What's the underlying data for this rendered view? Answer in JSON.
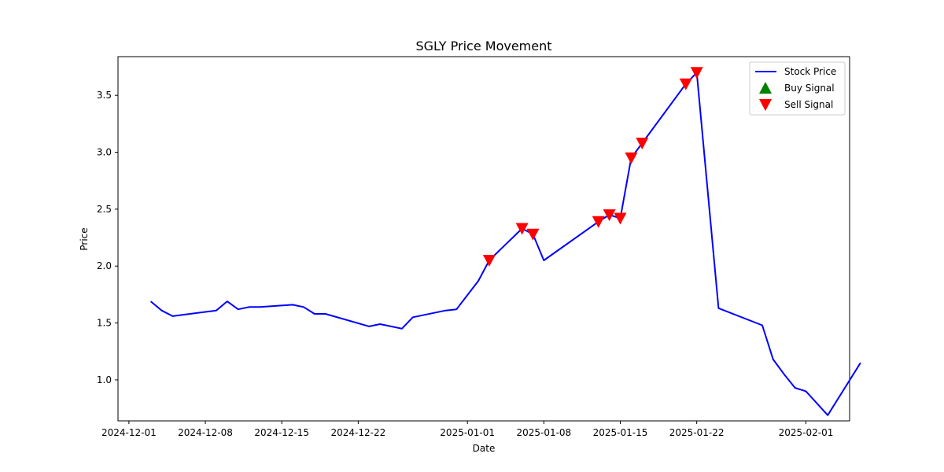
{
  "chart_data": {
    "type": "line",
    "title": "SGLY Price Movement",
    "xlabel": "Date",
    "ylabel": "Price",
    "x_ticks": [
      "2024-12-01",
      "2024-12-08",
      "2024-12-15",
      "2024-12-22",
      "2025-01-01",
      "2025-01-08",
      "2025-01-15",
      "2025-01-22",
      "2025-02-01"
    ],
    "y_ticks": [
      1.0,
      1.5,
      2.0,
      2.5,
      3.0,
      3.5
    ],
    "xlim": [
      "2024-11-30",
      "2025-02-05"
    ],
    "ylim": [
      0.64,
      3.84
    ],
    "grid": false,
    "legend_position": "top-right",
    "series": [
      {
        "name": "Stock Price",
        "color": "#0000ff",
        "points": [
          [
            "2024-12-03",
            1.69
          ],
          [
            "2024-12-04",
            1.61
          ],
          [
            "2024-12-05",
            1.56
          ],
          [
            "2024-12-09",
            1.61
          ],
          [
            "2024-12-10",
            1.69
          ],
          [
            "2024-12-11",
            1.62
          ],
          [
            "2024-12-12",
            1.64
          ],
          [
            "2024-12-13",
            1.64
          ],
          [
            "2024-12-16",
            1.66
          ],
          [
            "2024-12-17",
            1.64
          ],
          [
            "2024-12-18",
            1.58
          ],
          [
            "2024-12-19",
            1.58
          ],
          [
            "2024-12-23",
            1.47
          ],
          [
            "2024-12-24",
            1.49
          ],
          [
            "2024-12-26",
            1.45
          ],
          [
            "2024-12-27",
            1.55
          ],
          [
            "2024-12-30",
            1.61
          ],
          [
            "2024-12-31",
            1.62
          ],
          [
            "2025-01-02",
            1.87
          ],
          [
            "2025-01-03",
            2.05
          ],
          [
            "2025-01-06",
            2.33
          ],
          [
            "2025-01-07",
            2.28
          ],
          [
            "2025-01-08",
            2.05
          ],
          [
            "2025-01-13",
            2.39
          ],
          [
            "2025-01-14",
            2.45
          ],
          [
            "2025-01-15",
            2.42
          ],
          [
            "2025-01-16",
            2.95
          ],
          [
            "2025-01-17",
            3.08
          ],
          [
            "2025-01-21",
            3.6
          ],
          [
            "2025-01-22",
            3.7
          ],
          [
            "2025-01-24",
            1.63
          ],
          [
            "2025-01-28",
            1.48
          ],
          [
            "2025-01-29",
            1.18
          ],
          [
            "2025-01-30",
            1.05
          ],
          [
            "2025-01-31",
            0.93
          ],
          [
            "2025-02-01",
            0.9
          ],
          [
            "2025-02-03",
            0.69
          ],
          [
            "2025-02-06",
            1.15
          ]
        ]
      },
      {
        "name": "Buy Signal",
        "color": "#008000",
        "marker": "triangle-up",
        "points": []
      },
      {
        "name": "Sell Signal",
        "color": "#ff0000",
        "marker": "triangle-down",
        "points": [
          [
            "2025-01-03",
            2.05
          ],
          [
            "2025-01-06",
            2.33
          ],
          [
            "2025-01-07",
            2.28
          ],
          [
            "2025-01-13",
            2.39
          ],
          [
            "2025-01-14",
            2.45
          ],
          [
            "2025-01-15",
            2.42
          ],
          [
            "2025-01-16",
            2.95
          ],
          [
            "2025-01-17",
            3.08
          ],
          [
            "2025-01-21",
            3.6
          ],
          [
            "2025-01-22",
            3.7
          ]
        ]
      }
    ]
  }
}
